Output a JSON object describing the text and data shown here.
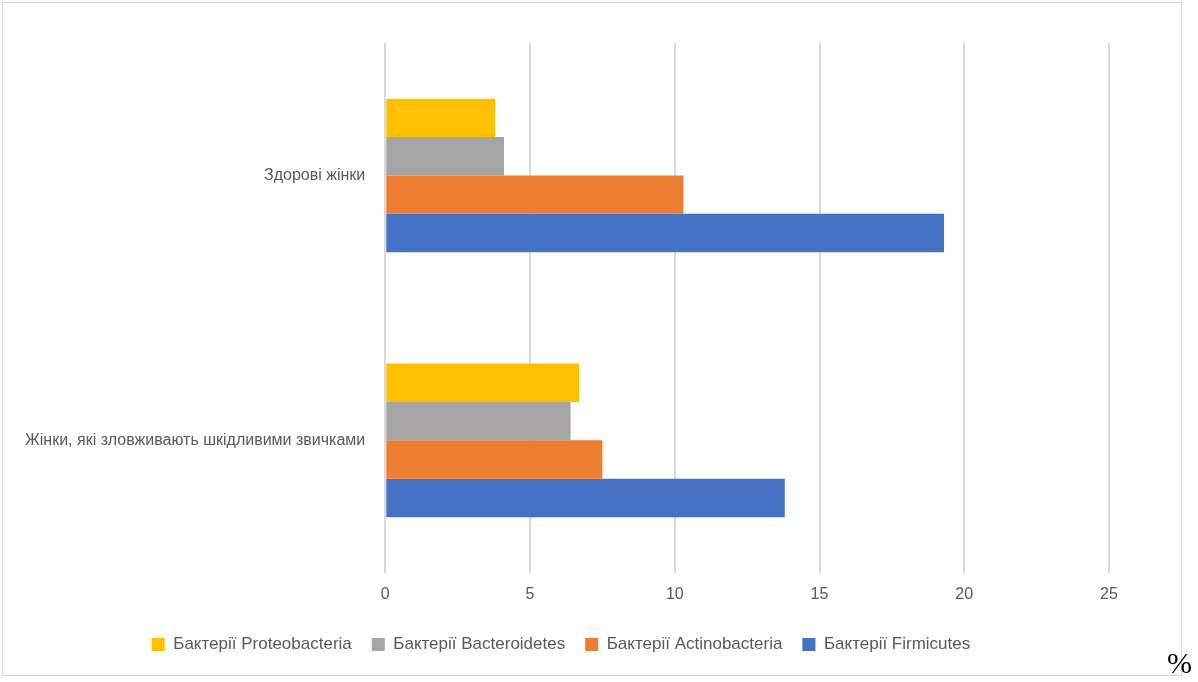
{
  "chart_data": {
    "type": "bar",
    "orientation": "horizontal",
    "xlabel": "%",
    "categories": [
      "Здорові жінки",
      "Жінки, які зловживають шкідливими звичками"
    ],
    "series": [
      {
        "name": "Бактерії Proteobacteria",
        "color": "#ffc000",
        "values": [
          3.8,
          6.7
        ]
      },
      {
        "name": "Бактерії Bacteroidetes",
        "color": "#a5a5a5",
        "values": [
          4.1,
          6.4
        ]
      },
      {
        "name": "Бактерії Actinobacteria",
        "color": "#ed7d31",
        "values": [
          10.3,
          7.5
        ]
      },
      {
        "name": "Бактерії Firmicutes",
        "color": "#4472c4",
        "values": [
          19.3,
          13.8
        ]
      }
    ],
    "xlim": [
      0,
      25
    ],
    "xticks": [
      0,
      5,
      10,
      15,
      20,
      25
    ],
    "grid": "x",
    "legend": "bottom"
  }
}
